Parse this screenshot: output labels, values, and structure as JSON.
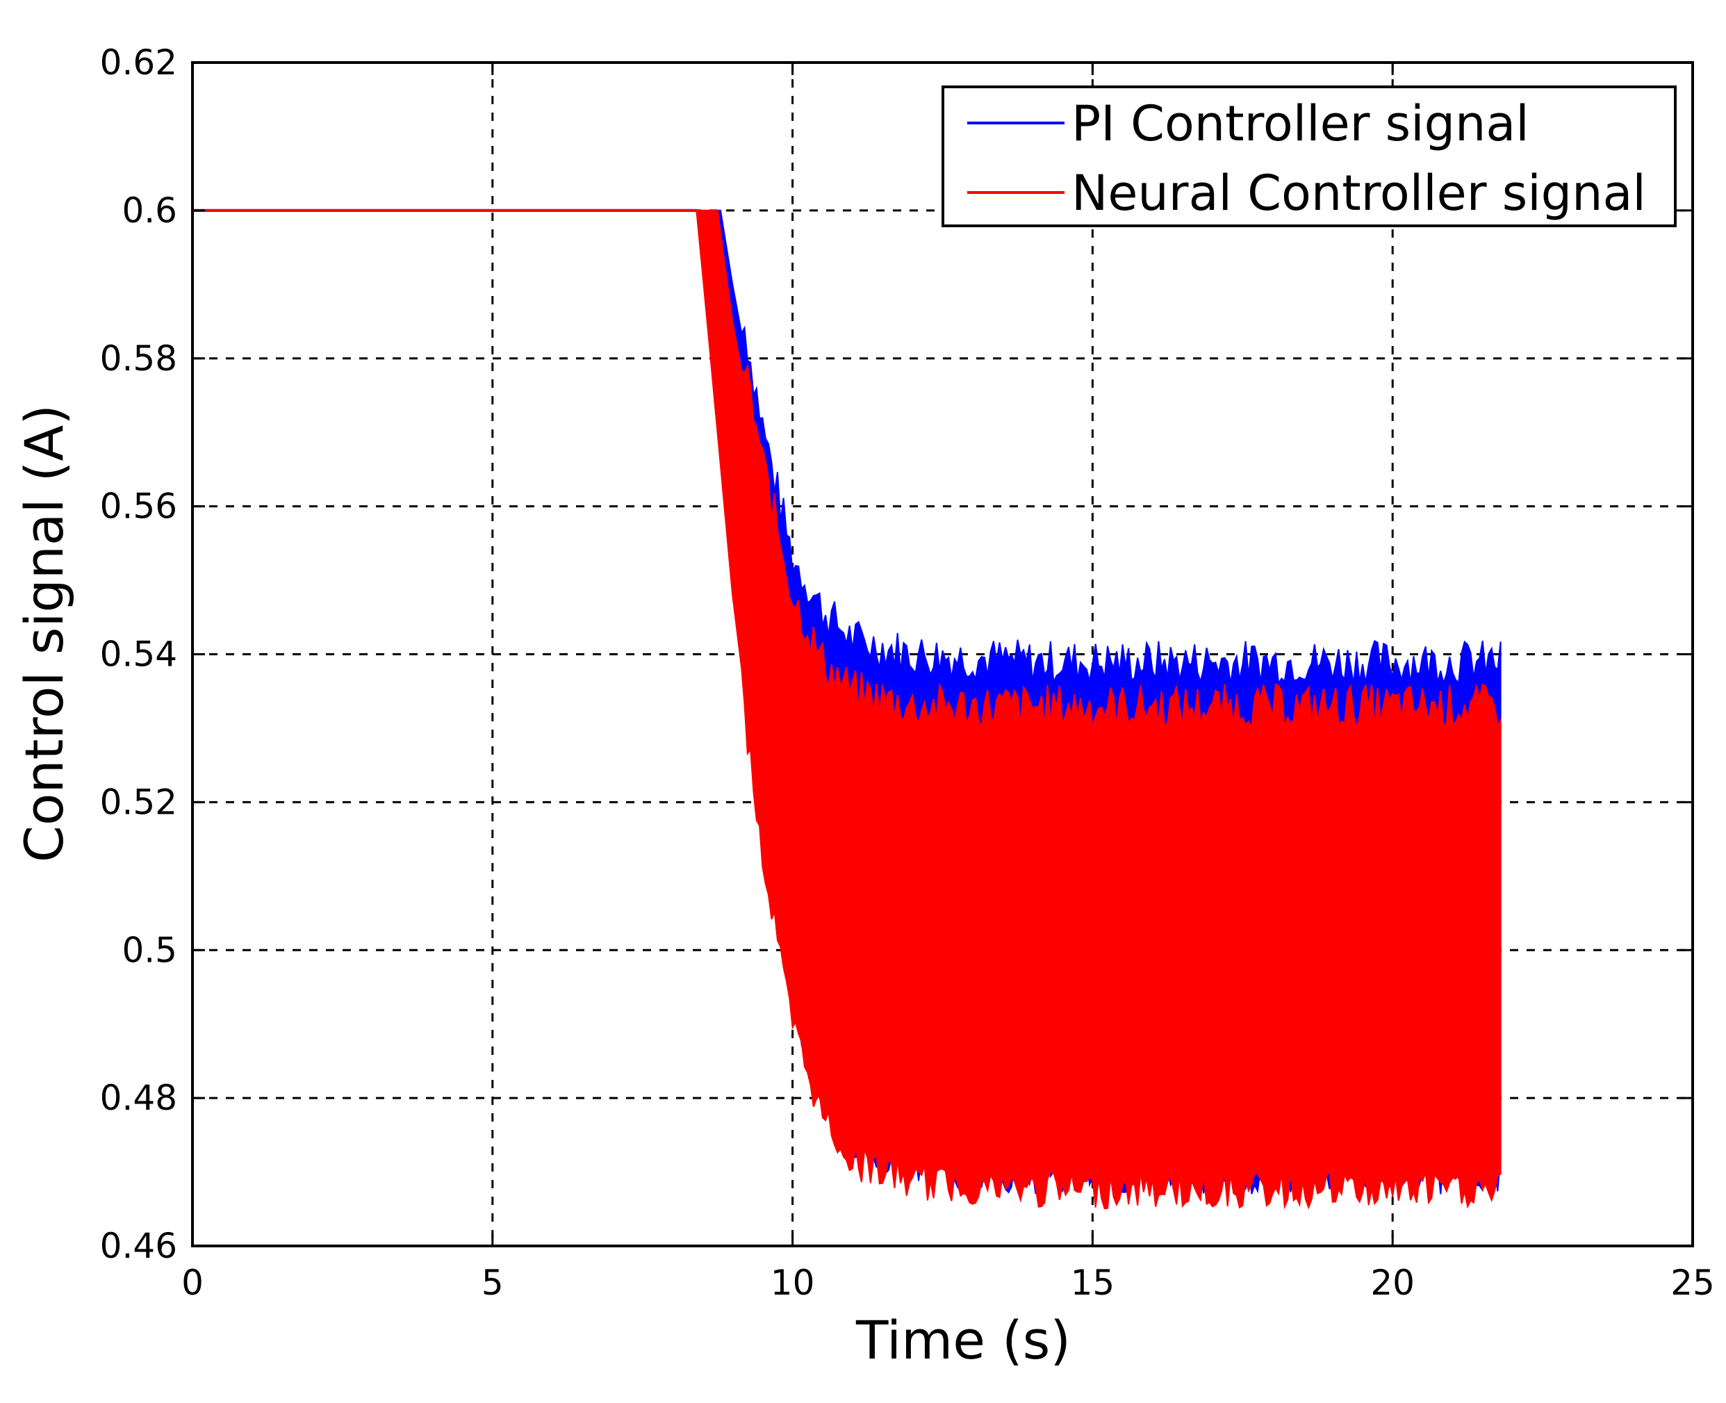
{
  "chart_data": {
    "type": "line",
    "xlabel": "Time (s)",
    "ylabel": "Control signal (A)",
    "xlim": [
      0,
      25
    ],
    "ylim": [
      0.46,
      0.62
    ],
    "xticks": [
      0,
      5,
      10,
      15,
      20,
      25
    ],
    "yticks": [
      0.46,
      0.48,
      0.5,
      0.52,
      0.54,
      0.56,
      0.58,
      0.6,
      0.62
    ],
    "xtick_labels": [
      "0",
      "5",
      "10",
      "15",
      "20",
      "25"
    ],
    "ytick_labels": [
      "0.46",
      "0.48",
      "0.5",
      "0.52",
      "0.54",
      "0.56",
      "0.58",
      "0.6",
      "0.62"
    ],
    "grid": true,
    "legend_position": "top-right",
    "series": [
      {
        "name": "PI Controller signal",
        "color": "#0000ff",
        "initial_value": 0.6,
        "drop_start_time": 8.4,
        "end_time": 21.8,
        "steady_upper": 0.536,
        "steady_lower": 0.472,
        "upper_envelope": [
          [
            8.4,
            0.6
          ],
          [
            8.8,
            0.6
          ],
          [
            9.0,
            0.59
          ],
          [
            9.5,
            0.568
          ],
          [
            10.0,
            0.55
          ],
          [
            10.5,
            0.543
          ],
          [
            11.0,
            0.539
          ],
          [
            12.0,
            0.537
          ],
          [
            14.0,
            0.536
          ],
          [
            17.0,
            0.536
          ],
          [
            21.8,
            0.536
          ]
        ],
        "lower_envelope": [
          [
            8.4,
            0.6
          ],
          [
            8.6,
            0.585
          ],
          [
            9.0,
            0.55
          ],
          [
            9.5,
            0.518
          ],
          [
            10.0,
            0.495
          ],
          [
            10.5,
            0.482
          ],
          [
            11.0,
            0.477
          ],
          [
            12.0,
            0.473
          ],
          [
            14.0,
            0.472
          ],
          [
            21.8,
            0.472
          ]
        ]
      },
      {
        "name": "Neural Controller signal",
        "color": "#ff0000",
        "initial_value": 0.6,
        "drop_start_time": 8.4,
        "end_time": 21.8,
        "steady_upper": 0.53,
        "steady_lower": 0.47,
        "upper_envelope": [
          [
            8.4,
            0.6
          ],
          [
            8.75,
            0.6
          ],
          [
            9.0,
            0.585
          ],
          [
            9.5,
            0.563
          ],
          [
            10.0,
            0.545
          ],
          [
            10.5,
            0.536
          ],
          [
            11.0,
            0.532
          ],
          [
            12.0,
            0.53
          ],
          [
            14.0,
            0.53
          ],
          [
            21.8,
            0.53
          ]
        ],
        "lower_envelope": [
          [
            8.4,
            0.6
          ],
          [
            8.6,
            0.583
          ],
          [
            9.0,
            0.548
          ],
          [
            9.5,
            0.515
          ],
          [
            10.0,
            0.492
          ],
          [
            10.5,
            0.48
          ],
          [
            11.0,
            0.474
          ],
          [
            12.0,
            0.471
          ],
          [
            14.0,
            0.47
          ],
          [
            21.8,
            0.47
          ]
        ]
      }
    ]
  }
}
